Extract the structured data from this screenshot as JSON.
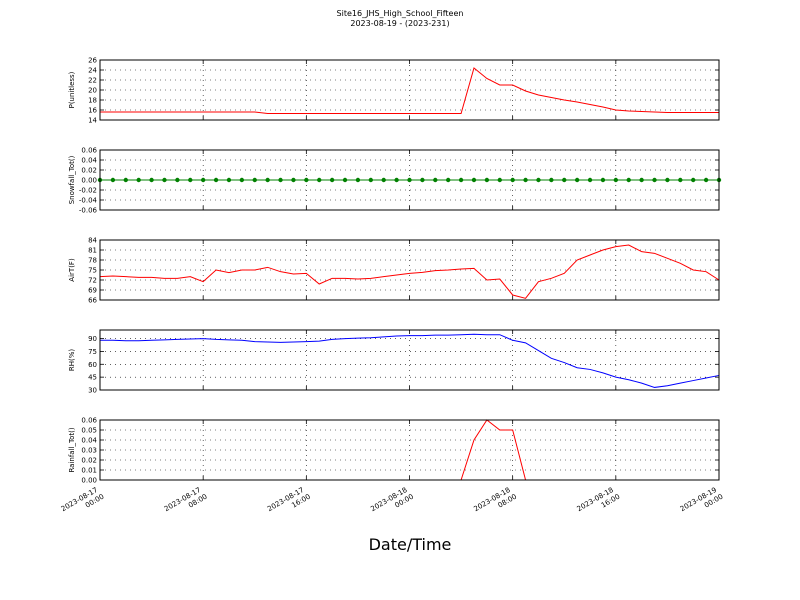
{
  "title": "Site16_JHS_High_School_Fifteen",
  "subtitle": "2023-08-19 - (2023-231)",
  "xlabel": "Date/Time",
  "chart_data": [
    {
      "type": "line",
      "ylabel": "P(unitless)",
      "color": "#ff0000",
      "grid": true,
      "xlim": [
        "2023-08-17 00:00",
        "2023-08-19 00:00"
      ],
      "xticks": [
        "2023-08-17 00:00",
        "2023-08-17 08:00",
        "2023-08-17 16:00",
        "2023-08-18 00:00",
        "2023-08-18 08:00",
        "2023-08-18 16:00",
        "2023-08-19 00:00"
      ],
      "ylim": [
        14,
        26
      ],
      "yticks": [
        14,
        16,
        18,
        20,
        22,
        24,
        26
      ],
      "x": [
        "2023-08-17 00:00",
        "2023-08-17 01:00",
        "2023-08-17 02:00",
        "2023-08-17 03:00",
        "2023-08-17 04:00",
        "2023-08-17 05:00",
        "2023-08-17 06:00",
        "2023-08-17 07:00",
        "2023-08-17 08:00",
        "2023-08-17 09:00",
        "2023-08-17 10:00",
        "2023-08-17 11:00",
        "2023-08-17 12:00",
        "2023-08-17 13:00",
        "2023-08-17 14:00",
        "2023-08-17 15:00",
        "2023-08-17 16:00",
        "2023-08-17 17:00",
        "2023-08-17 18:00",
        "2023-08-17 19:00",
        "2023-08-17 20:00",
        "2023-08-17 21:00",
        "2023-08-17 22:00",
        "2023-08-17 23:00",
        "2023-08-18 00:00",
        "2023-08-18 01:00",
        "2023-08-18 02:00",
        "2023-08-18 03:00",
        "2023-08-18 04:00",
        "2023-08-18 05:00",
        "2023-08-18 06:00",
        "2023-08-18 07:00",
        "2023-08-18 08:00",
        "2023-08-18 09:00",
        "2023-08-18 10:00",
        "2023-08-18 11:00",
        "2023-08-18 12:00",
        "2023-08-18 13:00",
        "2023-08-18 14:00",
        "2023-08-18 15:00",
        "2023-08-18 16:00",
        "2023-08-18 17:00",
        "2023-08-18 18:00",
        "2023-08-18 19:00",
        "2023-08-18 20:00",
        "2023-08-18 21:00",
        "2023-08-18 22:00",
        "2023-08-18 23:00",
        "2023-08-19 00:00"
      ],
      "values": [
        15.6,
        15.6,
        15.6,
        15.6,
        15.6,
        15.6,
        15.6,
        15.6,
        15.6,
        15.6,
        15.6,
        15.6,
        15.6,
        15.3,
        15.3,
        15.3,
        15.3,
        15.3,
        15.3,
        15.3,
        15.3,
        15.3,
        15.3,
        15.3,
        15.3,
        15.3,
        15.3,
        15.3,
        15.3,
        24.4,
        22.3,
        21.0,
        21.0,
        19.8,
        19.0,
        18.5,
        18.0,
        17.6,
        17.1,
        16.6,
        16.0,
        15.8,
        15.7,
        15.6,
        15.5,
        15.5,
        15.5,
        15.5,
        15.5
      ]
    },
    {
      "type": "line",
      "ylabel": "Snowfall_Tot()",
      "color": "#008000",
      "marker": true,
      "grid": true,
      "xlim": [
        "2023-08-17 00:00",
        "2023-08-19 00:00"
      ],
      "xticks": [
        "2023-08-17 00:00",
        "2023-08-17 08:00",
        "2023-08-17 16:00",
        "2023-08-18 00:00",
        "2023-08-18 08:00",
        "2023-08-18 16:00",
        "2023-08-19 00:00"
      ],
      "ylim": [
        -0.06,
        0.06
      ],
      "yticks": [
        -0.06,
        -0.04,
        -0.02,
        {
          "value": 0,
          "label": "0.00"
        },
        0.02,
        0.04,
        0.06
      ],
      "x": [
        "2023-08-17 00:00",
        "2023-08-17 01:00",
        "2023-08-17 02:00",
        "2023-08-17 03:00",
        "2023-08-17 04:00",
        "2023-08-17 05:00",
        "2023-08-17 06:00",
        "2023-08-17 07:00",
        "2023-08-17 08:00",
        "2023-08-17 09:00",
        "2023-08-17 10:00",
        "2023-08-17 11:00",
        "2023-08-17 12:00",
        "2023-08-17 13:00",
        "2023-08-17 14:00",
        "2023-08-17 15:00",
        "2023-08-17 16:00",
        "2023-08-17 17:00",
        "2023-08-17 18:00",
        "2023-08-17 19:00",
        "2023-08-17 20:00",
        "2023-08-17 21:00",
        "2023-08-17 22:00",
        "2023-08-17 23:00",
        "2023-08-18 00:00",
        "2023-08-18 01:00",
        "2023-08-18 02:00",
        "2023-08-18 03:00",
        "2023-08-18 04:00",
        "2023-08-18 05:00",
        "2023-08-18 06:00",
        "2023-08-18 07:00",
        "2023-08-18 08:00",
        "2023-08-18 09:00",
        "2023-08-18 10:00",
        "2023-08-18 11:00",
        "2023-08-18 12:00",
        "2023-08-18 13:00",
        "2023-08-18 14:00",
        "2023-08-18 15:00",
        "2023-08-18 16:00",
        "2023-08-18 17:00",
        "2023-08-18 18:00",
        "2023-08-18 19:00",
        "2023-08-18 20:00",
        "2023-08-18 21:00",
        "2023-08-18 22:00",
        "2023-08-18 23:00",
        "2023-08-19 00:00"
      ],
      "values": [
        0,
        0,
        0,
        0,
        0,
        0,
        0,
        0,
        0,
        0,
        0,
        0,
        0,
        0,
        0,
        0,
        0,
        0,
        0,
        0,
        0,
        0,
        0,
        0,
        0,
        0,
        0,
        0,
        0,
        0,
        0,
        0,
        0,
        0,
        0,
        0,
        0,
        0,
        0,
        0,
        0,
        0,
        0,
        0,
        0,
        0,
        0,
        0,
        0
      ]
    },
    {
      "type": "line",
      "ylabel": "AirT(F)",
      "color": "#ff0000",
      "grid": true,
      "xlim": [
        "2023-08-17 00:00",
        "2023-08-19 00:00"
      ],
      "xticks": [
        "2023-08-17 00:00",
        "2023-08-17 08:00",
        "2023-08-17 16:00",
        "2023-08-18 00:00",
        "2023-08-18 08:00",
        "2023-08-18 16:00",
        "2023-08-19 00:00"
      ],
      "ylim": [
        66,
        84
      ],
      "yticks": [
        66,
        69,
        72,
        75,
        78,
        81,
        84
      ],
      "x": [
        "2023-08-17 00:00",
        "2023-08-17 01:00",
        "2023-08-17 02:00",
        "2023-08-17 03:00",
        "2023-08-17 04:00",
        "2023-08-17 05:00",
        "2023-08-17 06:00",
        "2023-08-17 07:00",
        "2023-08-17 08:00",
        "2023-08-17 09:00",
        "2023-08-17 10:00",
        "2023-08-17 11:00",
        "2023-08-17 12:00",
        "2023-08-17 13:00",
        "2023-08-17 14:00",
        "2023-08-17 15:00",
        "2023-08-17 16:00",
        "2023-08-17 17:00",
        "2023-08-17 18:00",
        "2023-08-17 19:00",
        "2023-08-17 20:00",
        "2023-08-17 21:00",
        "2023-08-17 22:00",
        "2023-08-17 23:00",
        "2023-08-18 00:00",
        "2023-08-18 01:00",
        "2023-08-18 02:00",
        "2023-08-18 03:00",
        "2023-08-18 04:00",
        "2023-08-18 05:00",
        "2023-08-18 06:00",
        "2023-08-18 07:00",
        "2023-08-18 08:00",
        "2023-08-18 09:00",
        "2023-08-18 10:00",
        "2023-08-18 11:00",
        "2023-08-18 12:00",
        "2023-08-18 13:00",
        "2023-08-18 14:00",
        "2023-08-18 15:00",
        "2023-08-18 16:00",
        "2023-08-18 17:00",
        "2023-08-18 18:00",
        "2023-08-18 19:00",
        "2023-08-18 20:00",
        "2023-08-18 21:00",
        "2023-08-18 22:00",
        "2023-08-18 23:00",
        "2023-08-19 00:00"
      ],
      "values": [
        73,
        73.2,
        73,
        72.8,
        72.8,
        72.5,
        72.5,
        73,
        71.5,
        75,
        74.2,
        75,
        75,
        75.8,
        74.5,
        73.8,
        74,
        70.8,
        72.5,
        72.5,
        72.3,
        72.5,
        73,
        73.5,
        74,
        74.3,
        74.8,
        75,
        75.3,
        75.5,
        72,
        72.3,
        67.5,
        66.5,
        71.5,
        72.5,
        74,
        78,
        79.5,
        81,
        82,
        82.5,
        80.5,
        80,
        78.5,
        77,
        75,
        74.5,
        72
      ]
    },
    {
      "type": "line",
      "ylabel": "RH(%)",
      "color": "#0000ff",
      "grid": true,
      "xlim": [
        "2023-08-17 00:00",
        "2023-08-19 00:00"
      ],
      "xticks": [
        "2023-08-17 00:00",
        "2023-08-17 08:00",
        "2023-08-17 16:00",
        "2023-08-18 00:00",
        "2023-08-18 08:00",
        "2023-08-18 16:00",
        "2023-08-19 00:00"
      ],
      "ylim": [
        30,
        100
      ],
      "yticks": [
        30,
        45,
        60,
        75,
        90
      ],
      "x": [
        "2023-08-17 00:00",
        "2023-08-17 01:00",
        "2023-08-17 02:00",
        "2023-08-17 03:00",
        "2023-08-17 04:00",
        "2023-08-17 05:00",
        "2023-08-17 06:00",
        "2023-08-17 07:00",
        "2023-08-17 08:00",
        "2023-08-17 09:00",
        "2023-08-17 10:00",
        "2023-08-17 11:00",
        "2023-08-17 12:00",
        "2023-08-17 13:00",
        "2023-08-17 14:00",
        "2023-08-17 15:00",
        "2023-08-17 16:00",
        "2023-08-17 17:00",
        "2023-08-17 18:00",
        "2023-08-17 19:00",
        "2023-08-17 20:00",
        "2023-08-17 21:00",
        "2023-08-17 22:00",
        "2023-08-17 23:00",
        "2023-08-18 00:00",
        "2023-08-18 01:00",
        "2023-08-18 02:00",
        "2023-08-18 03:00",
        "2023-08-18 04:00",
        "2023-08-18 05:00",
        "2023-08-18 06:00",
        "2023-08-18 07:00",
        "2023-08-18 08:00",
        "2023-08-18 09:00",
        "2023-08-18 10:00",
        "2023-08-18 11:00",
        "2023-08-18 12:00",
        "2023-08-18 13:00",
        "2023-08-18 14:00",
        "2023-08-18 15:00",
        "2023-08-18 16:00",
        "2023-08-18 17:00",
        "2023-08-18 18:00",
        "2023-08-18 19:00",
        "2023-08-18 20:00",
        "2023-08-18 21:00",
        "2023-08-18 22:00",
        "2023-08-18 23:00",
        "2023-08-19 00:00"
      ],
      "values": [
        88,
        88,
        87.5,
        87.5,
        88,
        88.5,
        89,
        89.5,
        90,
        89,
        88.5,
        88,
        86.5,
        86,
        85.5,
        86,
        86.5,
        87,
        89,
        90,
        90.5,
        91,
        92,
        93,
        93.5,
        93.5,
        94,
        94,
        94.5,
        95,
        94.5,
        94.5,
        88,
        85,
        76,
        67,
        62,
        56,
        54,
        50,
        45,
        42,
        38,
        33,
        35,
        38,
        41,
        44,
        47
      ]
    },
    {
      "type": "line",
      "ylabel": "Rainfall_Tot()",
      "color": "#ff0000",
      "grid": true,
      "xlabels": true,
      "xlim": [
        "2023-08-17 00:00",
        "2023-08-19 00:00"
      ],
      "xticks": [
        "2023-08-17 00:00",
        "2023-08-17 08:00",
        "2023-08-17 16:00",
        "2023-08-18 00:00",
        "2023-08-18 08:00",
        "2023-08-18 16:00",
        "2023-08-19 00:00"
      ],
      "ylim": [
        0,
        0.06
      ],
      "yticks": [
        {
          "value": 0,
          "label": "0.00"
        },
        0.01,
        0.02,
        0.03,
        0.04,
        0.05,
        0.06
      ],
      "x": [
        "2023-08-17 00:00",
        "2023-08-17 01:00",
        "2023-08-17 02:00",
        "2023-08-17 03:00",
        "2023-08-17 04:00",
        "2023-08-17 05:00",
        "2023-08-17 06:00",
        "2023-08-17 07:00",
        "2023-08-17 08:00",
        "2023-08-17 09:00",
        "2023-08-17 10:00",
        "2023-08-17 11:00",
        "2023-08-17 12:00",
        "2023-08-17 13:00",
        "2023-08-17 14:00",
        "2023-08-17 15:00",
        "2023-08-17 16:00",
        "2023-08-17 17:00",
        "2023-08-17 18:00",
        "2023-08-17 19:00",
        "2023-08-17 20:00",
        "2023-08-17 21:00",
        "2023-08-17 22:00",
        "2023-08-17 23:00",
        "2023-08-18 00:00",
        "2023-08-18 01:00",
        "2023-08-18 02:00",
        "2023-08-18 03:00",
        "2023-08-18 04:00",
        "2023-08-18 05:00",
        "2023-08-18 06:00",
        "2023-08-18 07:00",
        "2023-08-18 08:00",
        "2023-08-18 09:00",
        "2023-08-18 10:00",
        "2023-08-18 11:00",
        "2023-08-18 12:00",
        "2023-08-18 13:00",
        "2023-08-18 14:00",
        "2023-08-18 15:00",
        "2023-08-18 16:00",
        "2023-08-18 17:00",
        "2023-08-18 18:00",
        "2023-08-18 19:00",
        "2023-08-18 20:00",
        "2023-08-18 21:00",
        "2023-08-18 22:00",
        "2023-08-18 23:00",
        "2023-08-19 00:00"
      ],
      "values": [
        0,
        0,
        0,
        0,
        0,
        0,
        0,
        0,
        0,
        0,
        0,
        0,
        0,
        0,
        0,
        0,
        0,
        0,
        0,
        0,
        0,
        0,
        0,
        0,
        0,
        0,
        0,
        0,
        0,
        0.04,
        0.06,
        0.05,
        0.05,
        0,
        0,
        0,
        0,
        0,
        0,
        0,
        0,
        0,
        0,
        0,
        0,
        0,
        0,
        0,
        0
      ]
    }
  ]
}
